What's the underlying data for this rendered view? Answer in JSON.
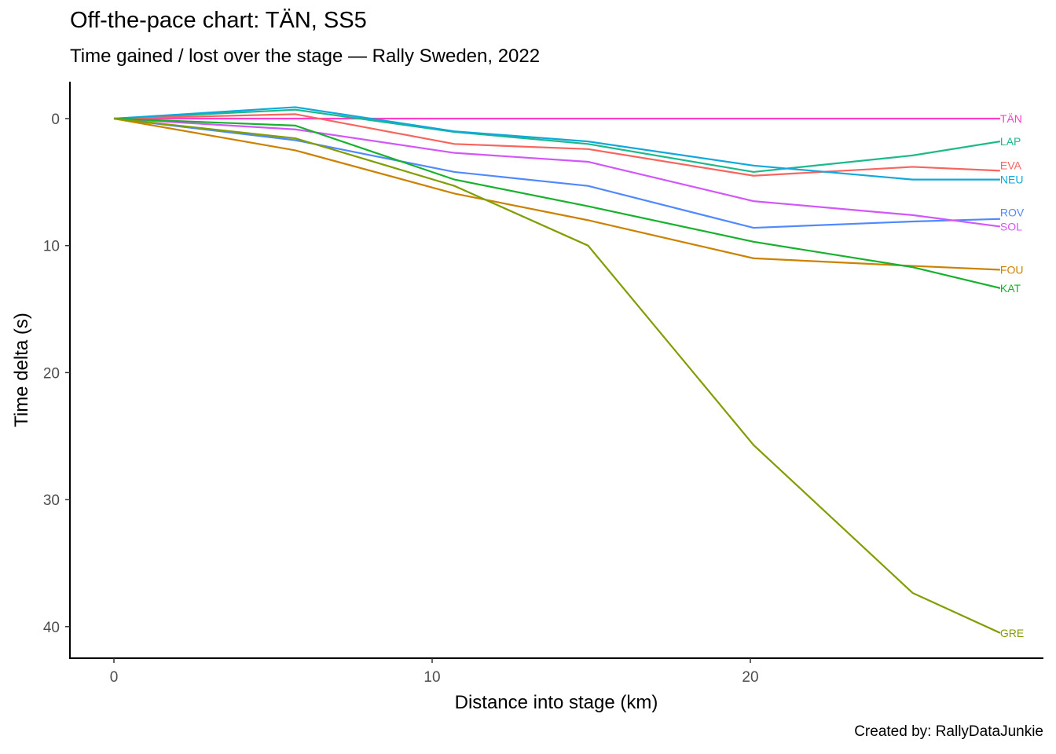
{
  "chart_data": {
    "type": "line",
    "title": "Off-the-pace chart: TÄN, SS5",
    "subtitle": "Time gained / lost over the stage — Rally Sweden, 2022",
    "caption": "Created by: RallyDataJunkie",
    "xlabel": "Distance into stage (km)",
    "ylabel": "Time delta (s)",
    "xlim": [
      -1.4,
      29.2
    ],
    "ylim": [
      -2.9,
      42.5
    ],
    "y_reversed": true,
    "xticks": [
      0,
      10,
      20
    ],
    "yticks": [
      0,
      10,
      20,
      30,
      40
    ],
    "x": [
      0,
      5.7,
      10.7,
      14.9,
      20.1,
      25.1,
      27.85
    ],
    "series": [
      {
        "name": "TÄN",
        "color": "#FF3FC4",
        "values": [
          0,
          0,
          0,
          0,
          0,
          0,
          0
        ]
      },
      {
        "name": "LAP",
        "color": "#1DB98A",
        "values": [
          0,
          -0.7,
          1.05,
          2.0,
          4.2,
          2.9,
          1.8
        ]
      },
      {
        "name": "EVA",
        "color": "#F8645E",
        "values": [
          0,
          -0.35,
          2.0,
          2.4,
          4.5,
          3.8,
          4.1
        ]
      },
      {
        "name": "NEU",
        "color": "#10A8DC",
        "values": [
          0,
          -0.9,
          1.0,
          1.8,
          3.7,
          4.8,
          4.8
        ]
      },
      {
        "name": "ROV",
        "color": "#5089FF",
        "values": [
          0,
          1.7,
          4.2,
          5.3,
          8.6,
          8.1,
          7.9
        ]
      },
      {
        "name": "SOL",
        "color": "#D257F9",
        "values": [
          0,
          0.85,
          2.7,
          3.4,
          6.5,
          7.6,
          8.5
        ]
      },
      {
        "name": "FOU",
        "color": "#CC8200",
        "values": [
          0,
          2.5,
          5.9,
          8.0,
          11.0,
          11.6,
          11.9
        ]
      },
      {
        "name": "KAT",
        "color": "#17B12D",
        "values": [
          0,
          0.55,
          4.8,
          6.9,
          9.7,
          11.7,
          13.35
        ]
      },
      {
        "name": "GRE",
        "color": "#7F9E00",
        "values": [
          0,
          1.55,
          5.3,
          10.0,
          25.7,
          37.35,
          40.5
        ]
      }
    ]
  }
}
